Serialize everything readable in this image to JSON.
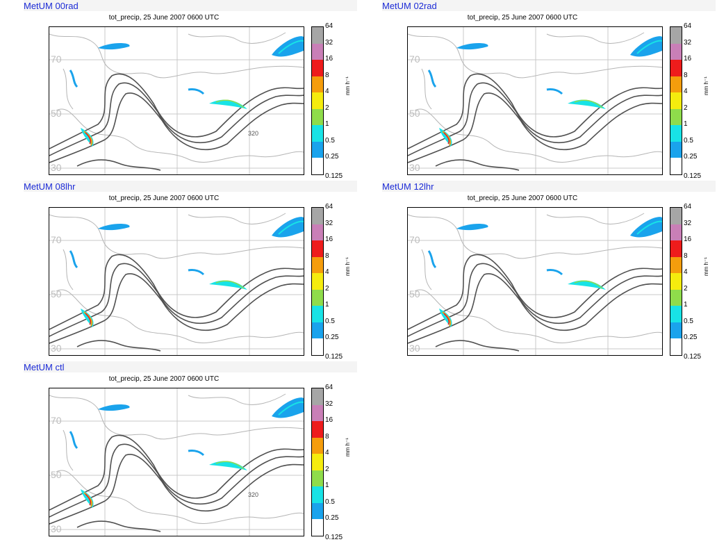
{
  "panels": [
    {
      "title": "MetUM 00rad",
      "subtitle": "tot_precip, 25 June 2007 0600 UTC"
    },
    {
      "title": "MetUM 02rad",
      "subtitle": "tot_precip, 25 June 2007 0600 UTC"
    },
    {
      "title": "MetUM 08lhr",
      "subtitle": "tot_precip, 25 June 2007 0600 UTC"
    },
    {
      "title": "MetUM 12lhr",
      "subtitle": "tot_precip, 25 June 2007 0600 UTC"
    },
    {
      "title": "MetUM ctl",
      "subtitle": "tot_precip, 25 June 2007 0600 UTC"
    }
  ],
  "lat_labels": [
    "70",
    "50",
    "30"
  ],
  "contour_label": "320",
  "colorbar": {
    "levels": [
      "64",
      "32",
      "16",
      "8",
      "4",
      "2",
      "1",
      "0.5",
      "0.25",
      "0.125"
    ],
    "colors": [
      "#a6a6a6",
      "#c97fb7",
      "#ee1c1c",
      "#f59d0c",
      "#f5ec0e",
      "#8fdc4b",
      "#18e3e6",
      "#1aa3ec",
      "#ffffff"
    ],
    "units": "mm h⁻¹"
  }
}
